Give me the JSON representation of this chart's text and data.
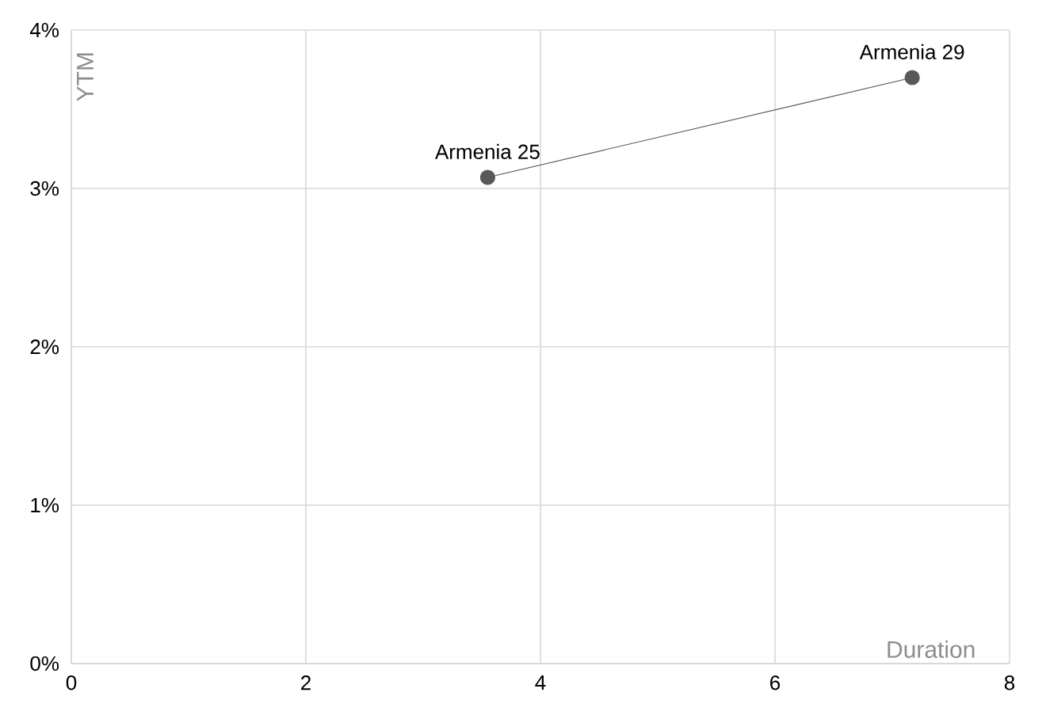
{
  "chart_data": {
    "type": "line",
    "xlabel": "Duration",
    "ylabel": "YTM",
    "series": [
      {
        "color": "#595959",
        "x": [
          3.55,
          7.17
        ],
        "values": [
          3.07,
          3.7
        ]
      }
    ],
    "annotations": [
      {
        "text": "Armenia 25",
        "x": 3.55,
        "y": 3.07
      },
      {
        "text": "Armenia 29",
        "x": 7.17,
        "y": 3.7
      }
    ],
    "xlim": [
      0,
      8
    ],
    "xticks": [
      0,
      2,
      4,
      6,
      8
    ],
    "ylim": [
      0,
      4
    ],
    "yticks": [
      {
        "value": 0,
        "label": "0%"
      },
      {
        "value": 1,
        "label": "1%"
      },
      {
        "value": 2,
        "label": "2%"
      },
      {
        "value": 3,
        "label": "3%"
      },
      {
        "value": 4,
        "label": "4%"
      }
    ],
    "grid": true,
    "marker": "circle",
    "line_style": "solid"
  }
}
